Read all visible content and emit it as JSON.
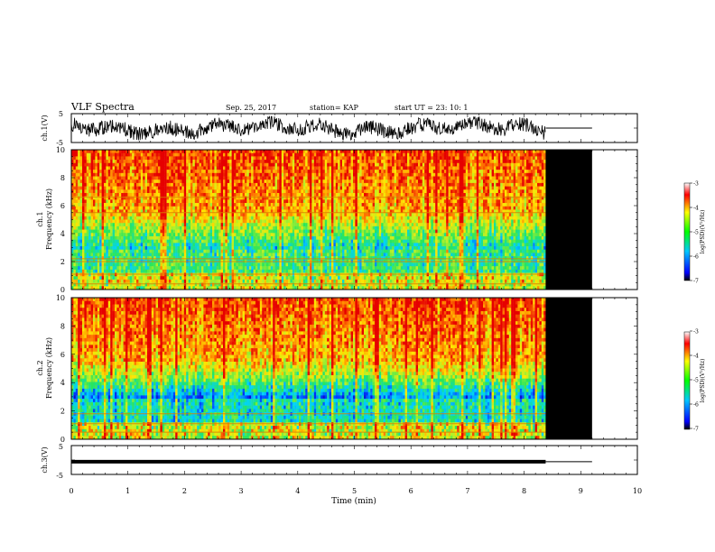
{
  "header": {
    "title": "VLF Spectra",
    "date": "Sep. 25, 2017",
    "station": "station= KAP",
    "start": "start UT =  23: 10: 1"
  },
  "chart_data": [
    {
      "type": "line",
      "panel": "ch1-waveform",
      "ylabel": "ch.1(V)",
      "ylim": [
        -5,
        5
      ],
      "yticks": [
        "5",
        "-5"
      ],
      "xlim": [
        0,
        10
      ],
      "series": [
        {
          "data_range_min": [
            0,
            8.38
          ],
          "min": -4.2,
          "max": 4.0,
          "color": "#000000"
        },
        {
          "flat_range_min": [
            8.38,
            9.2
          ],
          "value": 0.0,
          "color": "#000000"
        }
      ]
    },
    {
      "type": "heatmap",
      "panel": "ch1-spectrogram",
      "ylabel": "ch.1\nFrequency (kHz)",
      "ylabel_lines": [
        "ch.1",
        "Frequency (kHz)"
      ],
      "ylim": [
        0,
        10
      ],
      "yticks": [
        "0",
        "2",
        "4",
        "6",
        "8",
        "10"
      ],
      "xlim": [
        0,
        10
      ],
      "data_end_min": 8.38,
      "blank_end_min": 9.2,
      "colorbar": {
        "label": "log(PSD)(V²/Hz)",
        "range": [
          -7,
          -3
        ],
        "ticks": [
          "-3",
          "-4",
          "-5",
          "-6",
          "-7"
        ]
      },
      "horizontal_lines_khz": [
        6.6,
        5.5,
        2.2,
        2.0,
        1.1,
        0.4
      ]
    },
    {
      "type": "heatmap",
      "panel": "ch2-spectrogram",
      "ylabel": "ch.2\nFrequency (kHz)",
      "ylabel_lines": [
        "ch.2",
        "Frequency (kHz)"
      ],
      "ylim": [
        0,
        10
      ],
      "yticks": [
        "0",
        "2",
        "4",
        "6",
        "8",
        "10"
      ],
      "xlim": [
        0,
        10
      ],
      "data_end_min": 8.38,
      "blank_end_min": 9.2,
      "colorbar": {
        "label": "log(PSD)(V²/Hz)",
        "range": [
          -7,
          -3
        ],
        "ticks": [
          "-3",
          "-4",
          "-5",
          "-6",
          "-7"
        ]
      },
      "horizontal_lines_khz": [
        1.8,
        1.1,
        0.5
      ]
    },
    {
      "type": "line",
      "panel": "ch3-waveform",
      "ylabel": "ch.3(V)",
      "ylim": [
        -5,
        5
      ],
      "yticks": [
        "5",
        "-5"
      ],
      "xlim": [
        0,
        10
      ],
      "xlabel": "Time (min)",
      "xticks": [
        "0",
        "1",
        "2",
        "3",
        "4",
        "5",
        "6",
        "7",
        "8",
        "9",
        "10"
      ],
      "series": [
        {
          "data_range_min": [
            0,
            8.38
          ],
          "value": -0.6,
          "color": "#000000"
        },
        {
          "flat_range_min": [
            8.38,
            9.2
          ],
          "value": -0.6,
          "color": "#000000"
        }
      ]
    }
  ]
}
